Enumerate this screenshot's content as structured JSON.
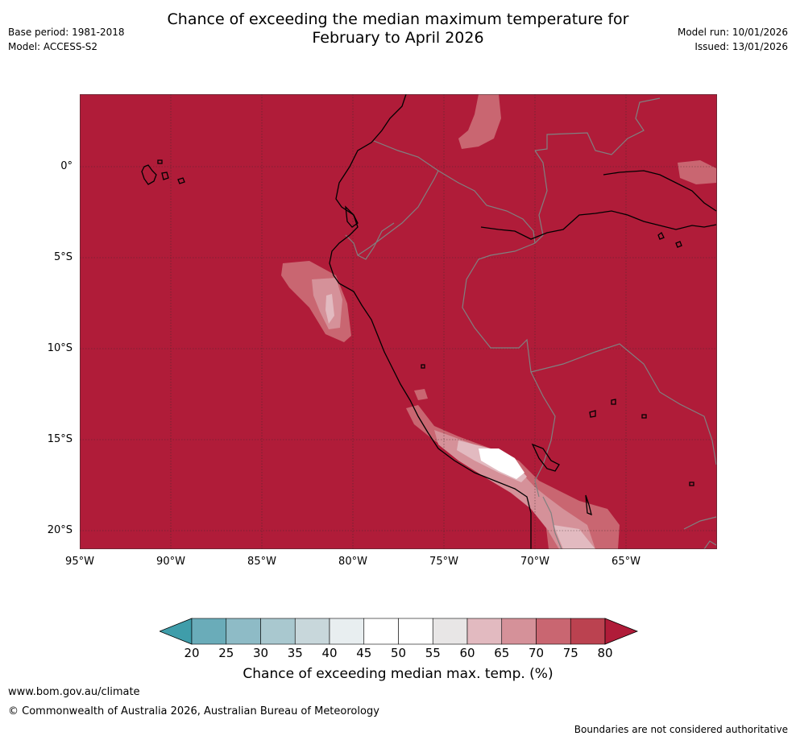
{
  "header": {
    "title_line1": "Chance of exceeding the median maximum temperature for",
    "title_line2": "February to April 2026",
    "base_period": "Base period: 1981-2018",
    "model": "Model: ACCESS-S2",
    "model_run": "Model run: 10/01/2026",
    "issued": "Issued: 13/01/2026"
  },
  "map": {
    "lat_labels": [
      "0°",
      "5°S",
      "10°S",
      "15°S",
      "20°S"
    ],
    "lon_labels": [
      "95°W",
      "90°W",
      "85°W",
      "80°W",
      "75°W",
      "70°W",
      "65°W"
    ],
    "colors": {
      "ocean_land_fill": "#b01c39",
      "coastline": "#000000",
      "border": "#808080",
      "grid": "#3a2a2a"
    }
  },
  "colorbar": {
    "ticks": [
      "20",
      "25",
      "30",
      "35",
      "40",
      "45",
      "50",
      "55",
      "60",
      "65",
      "70",
      "75",
      "80"
    ],
    "colors": [
      "#3f9daa",
      "#6aacb9",
      "#8ebbc6",
      "#a9c8cf",
      "#c8d7db",
      "#e8eef0",
      "#ffffff",
      "#ffffff",
      "#e8e6e6",
      "#e2bac0",
      "#d59199",
      "#c96671",
      "#bb4250",
      "#b01c39"
    ],
    "label": "Chance of exceeding median max. temp. (%)"
  },
  "footer": {
    "url": "www.bom.gov.au/climate",
    "copyright": "© Commonwealth of Australia 2026, Australian Bureau of Meteorology",
    "disclaimer": "Boundaries are not considered authoritative"
  }
}
